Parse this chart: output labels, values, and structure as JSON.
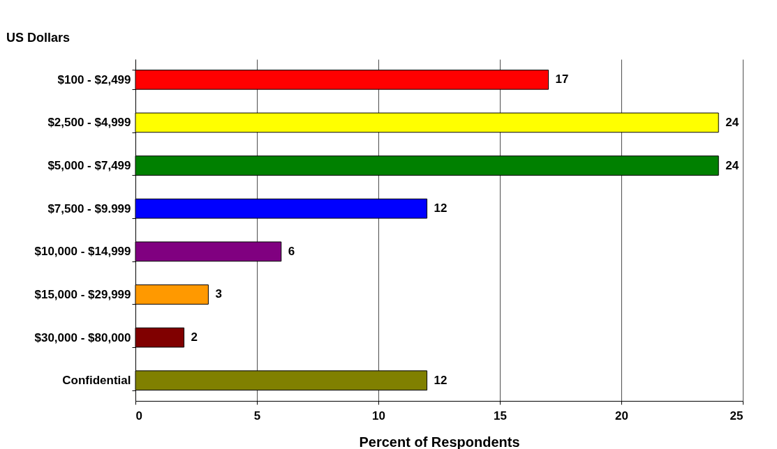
{
  "chart_data": {
    "type": "bar",
    "orientation": "horizontal",
    "ylabel": "US Dollars",
    "xlabel": "Percent of Respondents",
    "categories": [
      "$100 - $2,499",
      "$2,500 - $4,999",
      "$5,000 - $7,499",
      "$7,500 - $9.999",
      "$10,000 - $14,999",
      "$15,000 - $29,999",
      "$30,000 - $80,000",
      "Confidential"
    ],
    "values": [
      17,
      24,
      24,
      12,
      6,
      3,
      2,
      12
    ],
    "colors": [
      "#ff0000",
      "#ffff00",
      "#008000",
      "#0000ff",
      "#800080",
      "#ff9900",
      "#800000",
      "#808000"
    ],
    "xlim": [
      0,
      25
    ],
    "xticks": [
      0,
      5,
      10,
      15,
      20,
      25
    ],
    "grid": "x",
    "data_labels": true,
    "legend": false
  }
}
